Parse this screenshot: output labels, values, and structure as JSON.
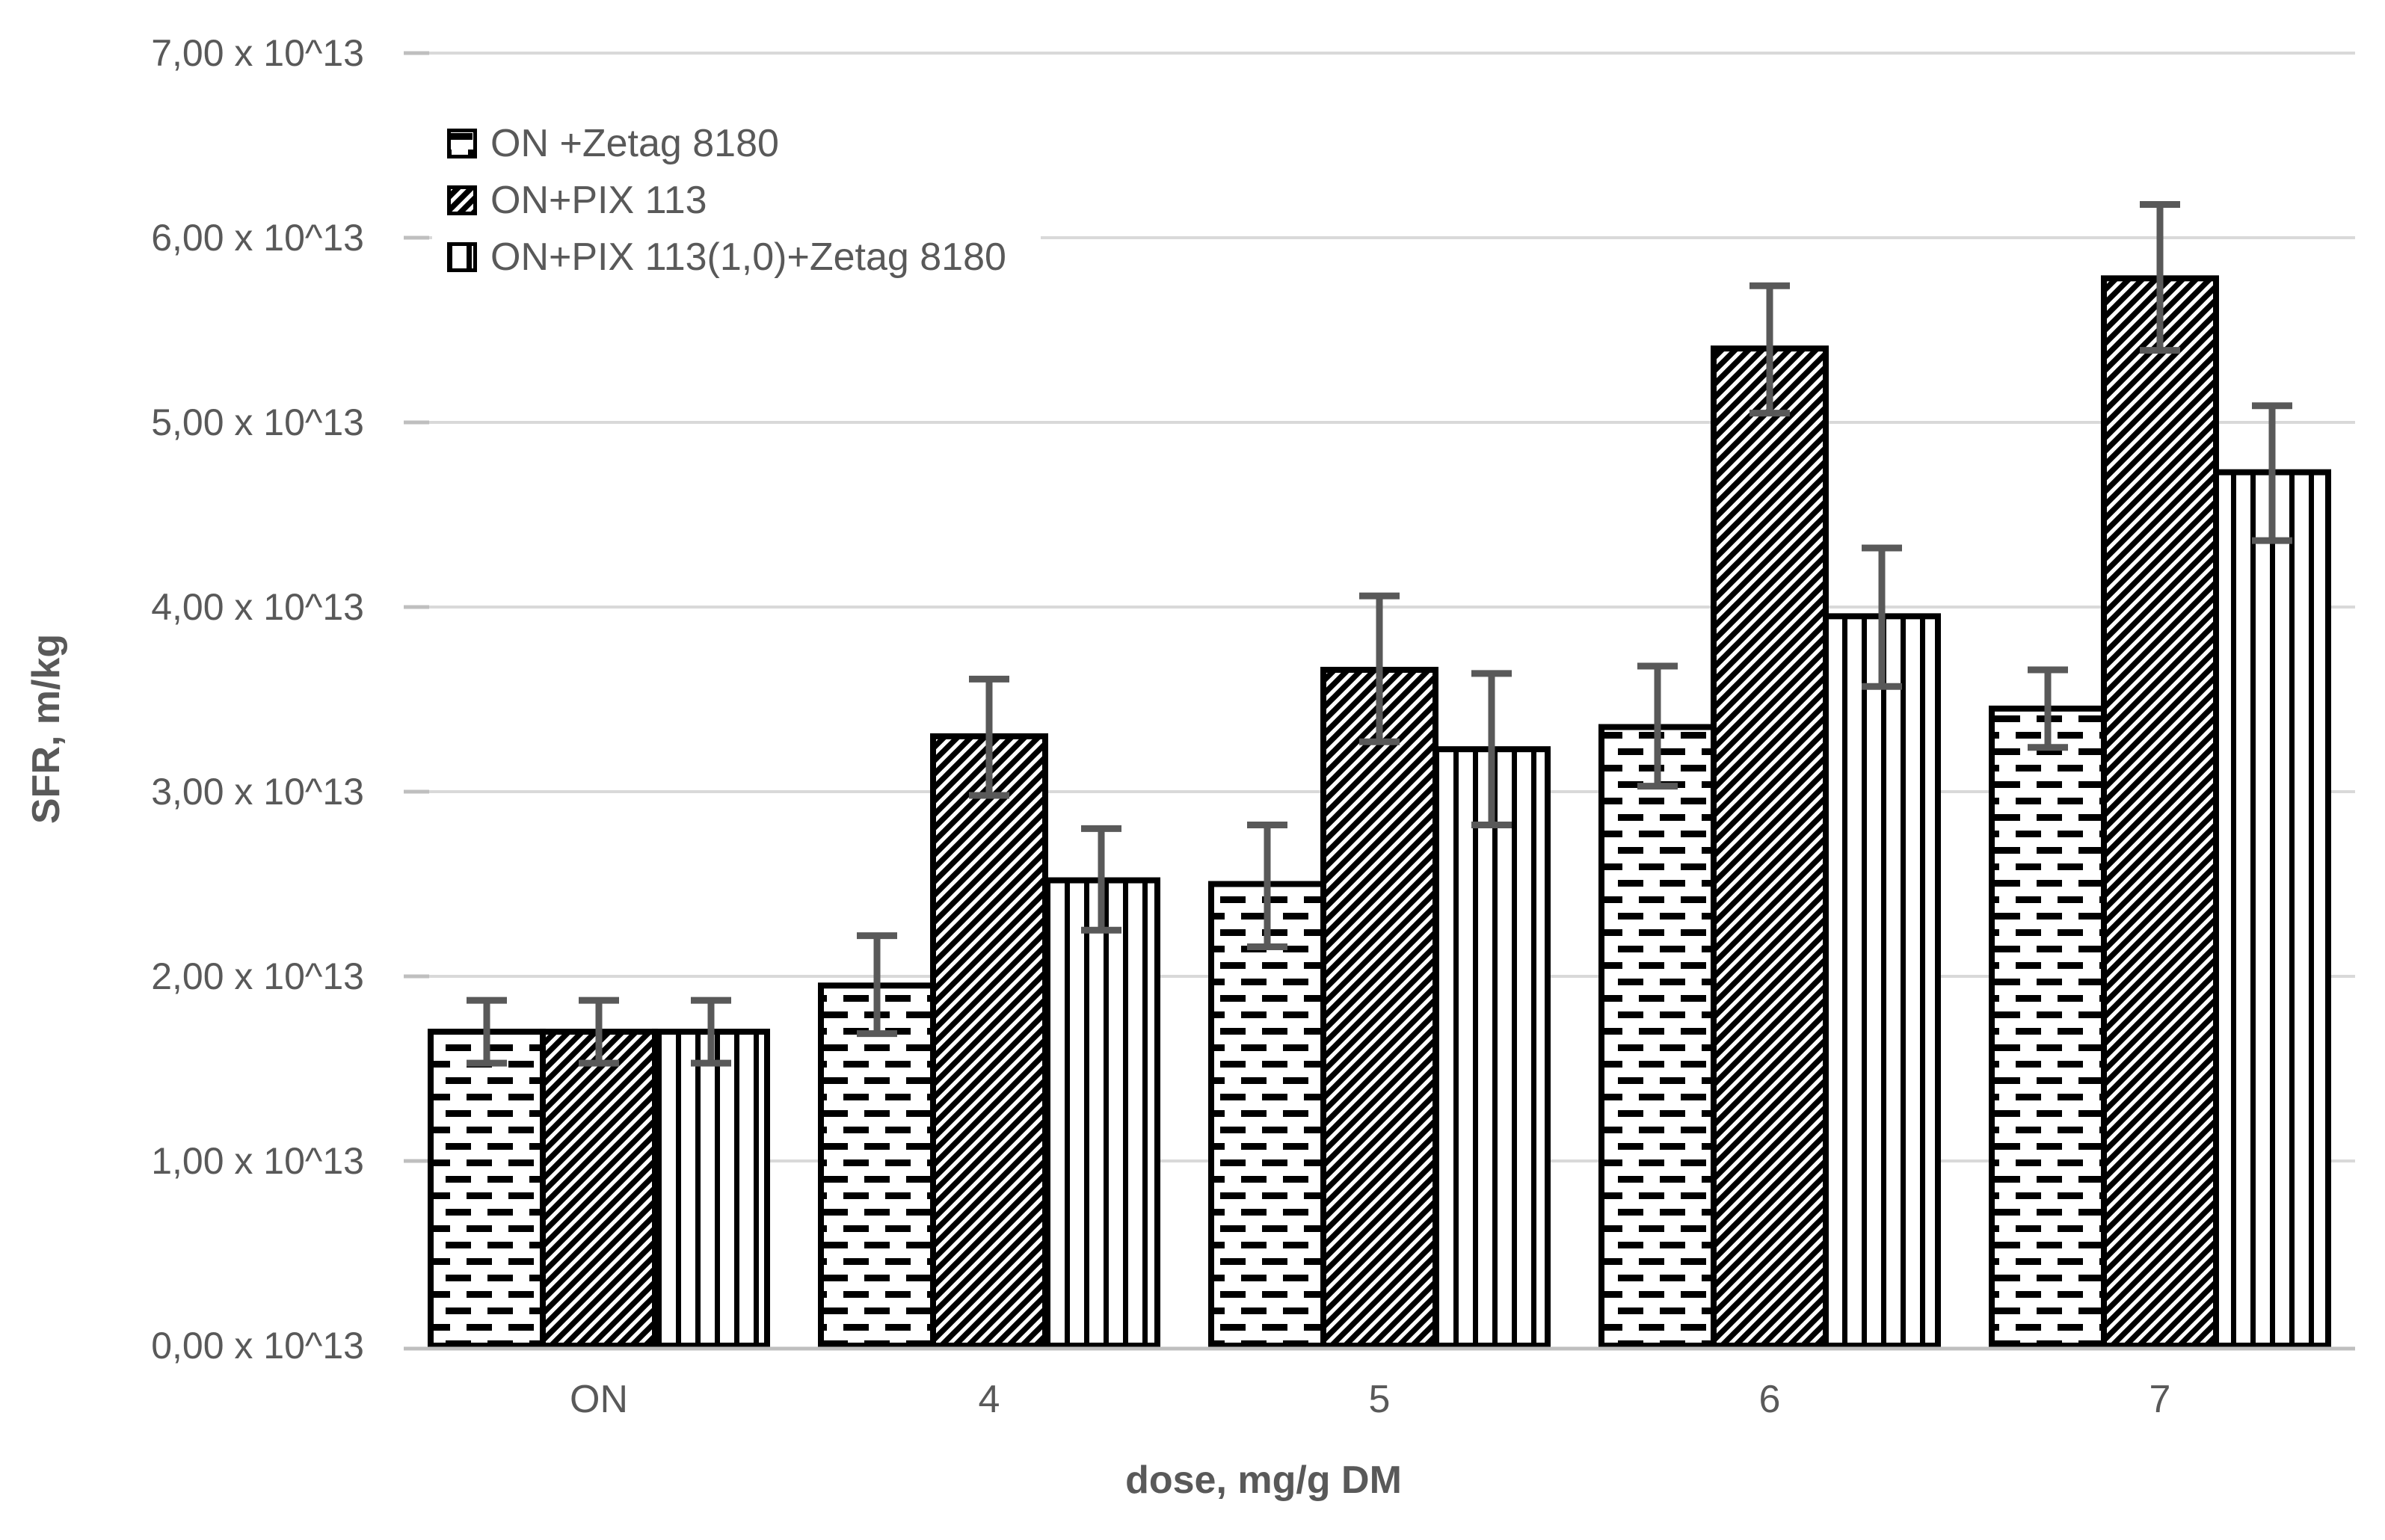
{
  "chart_data": {
    "type": "bar",
    "title": "",
    "ylabel": "SFR, m/kg",
    "xlabel": "dose, mg/g DM",
    "categories": [
      "ON",
      "4",
      "5",
      "6",
      "7"
    ],
    "y_ticks": [
      "0,00 x 10^13",
      "1,00 x 10^13",
      "2,00 x 10^13",
      "3,00 x 10^13",
      "4,00 x 10^13",
      "5,00 x 10^13",
      "6,00 x 10^13",
      "7,00 x 10^13"
    ],
    "ylim": [
      0,
      7
    ],
    "grid": true,
    "legend_position": "top-left-inside",
    "series": [
      {
        "name": "ON +Zetag 8180",
        "pattern": "horizontal-dash",
        "values": [
          1.7,
          1.95,
          2.5,
          3.35,
          3.45
        ],
        "error_plus": [
          0.17,
          0.27,
          0.32,
          0.33,
          0.21
        ],
        "error_minus": [
          0.17,
          0.26,
          0.34,
          0.32,
          0.21
        ]
      },
      {
        "name": "ON+PIX 113",
        "pattern": "diagonal-hatch",
        "values": [
          1.7,
          3.3,
          3.66,
          5.4,
          5.78
        ],
        "error_plus": [
          0.17,
          0.31,
          0.4,
          0.34,
          0.4
        ],
        "error_minus": [
          0.17,
          0.32,
          0.39,
          0.35,
          0.39
        ]
      },
      {
        "name": "ON+PIX 113(1,0)+Zetag 8180",
        "pattern": "vertical-line",
        "values": [
          1.7,
          2.52,
          3.23,
          3.95,
          4.73
        ],
        "error_plus": [
          0.17,
          0.28,
          0.41,
          0.37,
          0.36
        ],
        "error_minus": [
          0.17,
          0.27,
          0.41,
          0.38,
          0.37
        ]
      }
    ],
    "colors": {
      "bar_fill": "#ffffff",
      "bar_stroke": "#000000",
      "error_bar": "#595959",
      "gridline": "#d9d9d9",
      "axis_line": "#bfbfbf",
      "text": "#595959"
    }
  }
}
